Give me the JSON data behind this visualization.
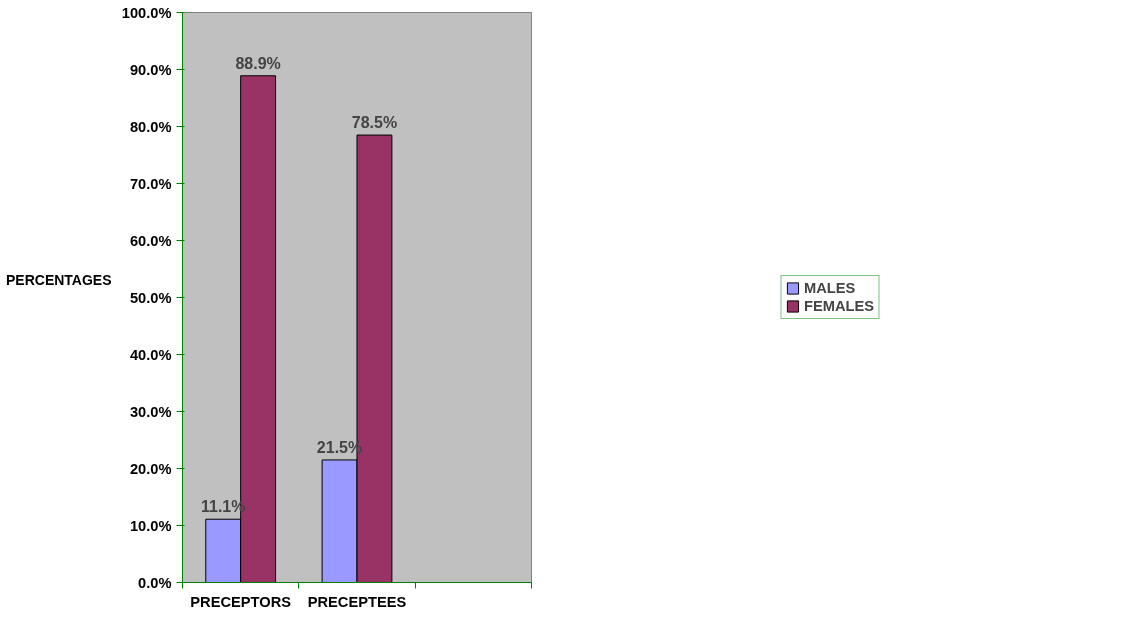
{
  "chart_data": {
    "type": "bar",
    "ylabel": "PERCENTAGES",
    "categories": [
      "PRECEPTORS",
      "PRECEPTEES",
      null
    ],
    "series": [
      {
        "name": "MALES",
        "color": "#9999ff",
        "values": [
          11.1,
          21.5,
          null
        ],
        "value_labels": [
          "11.1%",
          "21.5%",
          null
        ]
      },
      {
        "name": "FEMALES",
        "color": "#993366",
        "values": [
          88.9,
          78.5,
          null
        ],
        "value_labels": [
          "88.9%",
          "78.5%",
          null
        ]
      }
    ],
    "ylim": [
      0,
      100
    ],
    "yticks": [
      {
        "value": 0,
        "label": "0.0%"
      },
      {
        "value": 10,
        "label": "10.0%"
      },
      {
        "value": 20,
        "label": "20.0%"
      },
      {
        "value": 30,
        "label": "30.0%"
      },
      {
        "value": 40,
        "label": "40.0%"
      },
      {
        "value": 50,
        "label": "50.0%"
      },
      {
        "value": 60,
        "label": "60.0%"
      },
      {
        "value": 70,
        "label": "70.0%"
      },
      {
        "value": 80,
        "label": "80.0%"
      },
      {
        "value": 90,
        "label": "90.0%"
      },
      {
        "value": 100,
        "label": "100.0%"
      }
    ],
    "grid": false,
    "legend": "right"
  }
}
